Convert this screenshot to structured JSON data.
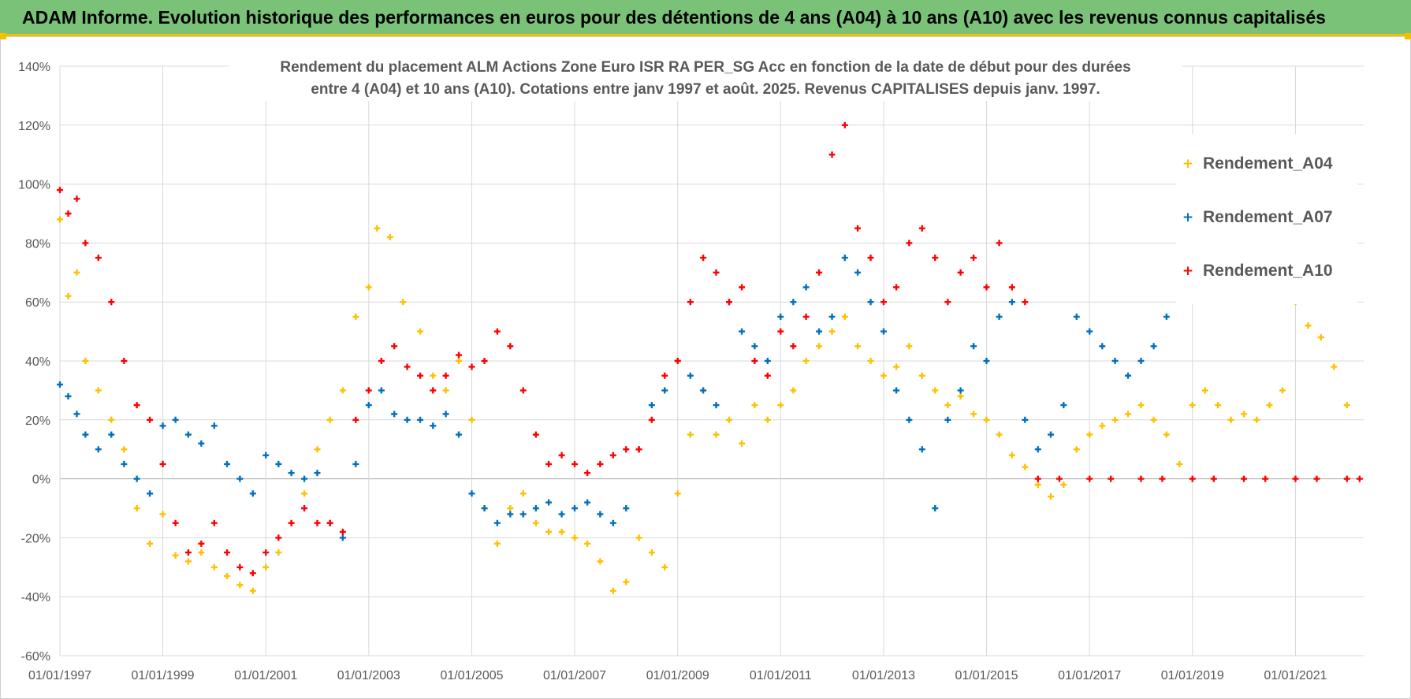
{
  "header": {
    "title": "ADAM Informe. Evolution historique des performances en euros pour des détentions de 4 ans (A04) à 10 ans (A10) avec les revenus connus capitalisés"
  },
  "chart_data": {
    "type": "scatter",
    "title_line1": "Rendement du placement ALM Actions Zone Euro ISR RA PER_SG Acc en fonction de la date de début pour des durées",
    "title_line2": "entre 4 (A04) et 10 ans (A10).  Cotations entre janv 1997 et août. 2025. Revenus CAPITALISES depuis janv. 1997.",
    "xlabel": "",
    "ylabel": "",
    "xlim": [
      "1997-01-01",
      "2022-04-30"
    ],
    "ylim": [
      -60,
      140
    ],
    "x_ticks": [
      "01/01/1997",
      "01/01/1999",
      "01/01/2001",
      "01/01/2003",
      "01/01/2005",
      "01/01/2007",
      "01/01/2009",
      "01/01/2011",
      "01/01/2013",
      "01/01/2015",
      "01/01/2017",
      "01/01/2019",
      "01/01/2021"
    ],
    "y_ticks": [
      "140%",
      "120%",
      "100%",
      "80%",
      "60%",
      "40%",
      "20%",
      "0%",
      "-20%",
      "-40%",
      "-60%"
    ],
    "y_tick_values": [
      140,
      120,
      100,
      80,
      60,
      40,
      20,
      0,
      -20,
      -40,
      -60
    ],
    "grid": "horizontal",
    "legend_position": "right",
    "series": [
      {
        "name": "Rendement_A04",
        "color": "#ffc000",
        "marker": "+",
        "x": [
          "1997-01-01",
          "1997-03-01",
          "1997-05-01",
          "1997-07-01",
          "1997-10-01",
          "1998-01-01",
          "1998-04-01",
          "1998-07-01",
          "1998-10-01",
          "1999-01-01",
          "1999-04-01",
          "1999-07-01",
          "1999-10-01",
          "2000-01-01",
          "2000-04-01",
          "2000-07-01",
          "2000-10-01",
          "2001-01-01",
          "2001-04-01",
          "2001-07-01",
          "2001-10-01",
          "2002-01-01",
          "2002-04-01",
          "2002-07-01",
          "2002-10-01",
          "2003-01-01",
          "2003-03-01",
          "2003-06-01",
          "2003-09-01",
          "2004-01-01",
          "2004-04-01",
          "2004-07-01",
          "2004-10-01",
          "2005-01-01",
          "2005-04-01",
          "2005-07-01",
          "2005-10-01",
          "2006-01-01",
          "2006-04-01",
          "2006-07-01",
          "2006-10-01",
          "2007-01-01",
          "2007-04-01",
          "2007-07-01",
          "2007-10-01",
          "2008-01-01",
          "2008-04-01",
          "2008-07-01",
          "2008-10-01",
          "2009-01-01",
          "2009-04-01",
          "2009-07-01",
          "2009-10-01",
          "2010-01-01",
          "2010-04-01",
          "2010-07-01",
          "2010-10-01",
          "2011-01-01",
          "2011-04-01",
          "2011-07-01",
          "2011-10-01",
          "2012-01-01",
          "2012-04-01",
          "2012-07-01",
          "2012-10-01",
          "2013-01-01",
          "2013-04-01",
          "2013-07-01",
          "2013-10-01",
          "2014-01-01",
          "2014-04-01",
          "2014-07-01",
          "2014-10-01",
          "2015-01-01",
          "2015-04-01",
          "2015-07-01",
          "2015-10-01",
          "2016-01-01",
          "2016-04-01",
          "2016-07-01",
          "2016-10-01",
          "2017-01-01",
          "2017-04-01",
          "2017-07-01",
          "2017-10-01",
          "2018-01-01",
          "2018-04-01",
          "2018-07-01",
          "2018-10-01",
          "2019-01-01",
          "2019-04-01",
          "2019-07-01",
          "2019-10-01",
          "2020-01-01",
          "2020-04-01",
          "2020-07-01",
          "2020-10-01",
          "2021-01-01",
          "2021-04-01",
          "2021-07-01",
          "2021-10-01",
          "2022-01-01"
        ],
        "y": [
          88,
          62,
          70,
          40,
          30,
          20,
          10,
          -10,
          -22,
          -12,
          -26,
          -28,
          -25,
          -30,
          -33,
          -36,
          -38,
          -30,
          -25,
          -15,
          -5,
          10,
          20,
          30,
          55,
          65,
          85,
          82,
          60,
          50,
          35,
          30,
          40,
          20,
          -10,
          -22,
          -10,
          -5,
          -15,
          -18,
          -18,
          -20,
          -22,
          -28,
          -38,
          -35,
          -20,
          -25,
          -30,
          -5,
          15,
          30,
          15,
          20,
          12,
          25,
          20,
          25,
          30,
          40,
          45,
          50,
          55,
          45,
          40,
          35,
          38,
          45,
          35,
          30,
          25,
          28,
          22,
          20,
          15,
          8,
          4,
          -2,
          -6,
          -2,
          10,
          15,
          18,
          20,
          22,
          25,
          20,
          15,
          5,
          25,
          30,
          25,
          20,
          22,
          20,
          25,
          30,
          60,
          52,
          48,
          38,
          25
        ]
      },
      {
        "name": "Rendement_A07",
        "color": "#0070c0",
        "marker": "+",
        "x": [
          "1997-01-01",
          "1997-03-01",
          "1997-05-01",
          "1997-07-01",
          "1997-10-01",
          "1998-01-01",
          "1998-04-01",
          "1998-07-01",
          "1998-10-01",
          "1999-01-01",
          "1999-04-01",
          "1999-07-01",
          "1999-10-01",
          "2000-01-01",
          "2000-04-01",
          "2000-07-01",
          "2000-10-01",
          "2001-01-01",
          "2001-04-01",
          "2001-07-01",
          "2001-10-01",
          "2002-01-01",
          "2002-04-01",
          "2002-07-01",
          "2002-10-01",
          "2003-01-01",
          "2003-04-01",
          "2003-07-01",
          "2003-10-01",
          "2004-01-01",
          "2004-04-01",
          "2004-07-01",
          "2004-10-01",
          "2005-01-01",
          "2005-04-01",
          "2005-07-01",
          "2005-10-01",
          "2006-01-01",
          "2006-04-01",
          "2006-07-01",
          "2006-10-01",
          "2007-01-01",
          "2007-04-01",
          "2007-07-01",
          "2007-10-01",
          "2008-01-01",
          "2008-04-01",
          "2008-07-01",
          "2008-10-01",
          "2009-01-01",
          "2009-04-01",
          "2009-07-01",
          "2009-10-01",
          "2010-01-01",
          "2010-04-01",
          "2010-07-01",
          "2010-10-01",
          "2011-01-01",
          "2011-04-01",
          "2011-07-01",
          "2011-10-01",
          "2012-01-01",
          "2012-04-01",
          "2012-07-01",
          "2012-10-01",
          "2013-01-01",
          "2013-04-01",
          "2013-07-01",
          "2013-10-01",
          "2014-01-01",
          "2014-04-01",
          "2014-07-01",
          "2014-10-01",
          "2015-01-01",
          "2015-04-01",
          "2015-07-01",
          "2015-10-01",
          "2016-01-01",
          "2016-04-01",
          "2016-07-01",
          "2016-10-01",
          "2017-01-01",
          "2017-04-01",
          "2017-07-01",
          "2017-10-01",
          "2018-01-01",
          "2018-04-01",
          "2018-07-01"
        ],
        "y": [
          32,
          28,
          22,
          15,
          10,
          15,
          5,
          0,
          -5,
          18,
          20,
          15,
          12,
          18,
          5,
          0,
          -5,
          8,
          5,
          2,
          0,
          2,
          -15,
          -20,
          5,
          25,
          30,
          22,
          20,
          20,
          18,
          22,
          15,
          -5,
          -10,
          -15,
          -12,
          -12,
          -10,
          -8,
          -12,
          -10,
          -8,
          -12,
          -15,
          -10,
          10,
          25,
          30,
          40,
          35,
          30,
          25,
          60,
          50,
          45,
          40,
          55,
          60,
          65,
          50,
          55,
          75,
          70,
          60,
          50,
          30,
          20,
          10,
          -10,
          20,
          30,
          45,
          40,
          55,
          60,
          20,
          10,
          15,
          25,
          55,
          50,
          45,
          40,
          35,
          40,
          45,
          55
        ]
      },
      {
        "name": "Rendement_A10",
        "color": "#ff0000",
        "marker": "+",
        "x": [
          "1997-01-01",
          "1997-03-01",
          "1997-05-01",
          "1997-07-01",
          "1997-10-01",
          "1998-01-01",
          "1998-04-01",
          "1998-07-01",
          "1998-10-01",
          "1999-01-01",
          "1999-04-01",
          "1999-07-01",
          "1999-10-01",
          "2000-01-01",
          "2000-04-01",
          "2000-07-01",
          "2000-10-01",
          "2001-01-01",
          "2001-04-01",
          "2001-07-01",
          "2001-10-01",
          "2002-01-01",
          "2002-04-01",
          "2002-07-01",
          "2002-10-01",
          "2003-01-01",
          "2003-04-01",
          "2003-07-01",
          "2003-10-01",
          "2004-01-01",
          "2004-04-01",
          "2004-07-01",
          "2004-10-01",
          "2005-01-01",
          "2005-04-01",
          "2005-07-01",
          "2005-10-01",
          "2006-01-01",
          "2006-04-01",
          "2006-07-01",
          "2006-10-01",
          "2007-01-01",
          "2007-04-01",
          "2007-07-01",
          "2007-10-01",
          "2008-01-01",
          "2008-04-01",
          "2008-07-01",
          "2008-10-01",
          "2009-01-01",
          "2009-04-01",
          "2009-07-01",
          "2009-10-01",
          "2010-01-01",
          "2010-04-01",
          "2010-07-01",
          "2010-10-01",
          "2011-01-01",
          "2011-04-01",
          "2011-07-01",
          "2011-10-01",
          "2012-01-01",
          "2012-04-01",
          "2012-07-01",
          "2012-10-01",
          "2013-01-01",
          "2013-04-01",
          "2013-07-01",
          "2013-10-01",
          "2014-01-01",
          "2014-04-01",
          "2014-07-01",
          "2014-10-01",
          "2015-01-01",
          "2015-04-01",
          "2015-07-01",
          "2015-10-01",
          "2016-01-01",
          "2016-06-01",
          "2017-01-01",
          "2017-06-01",
          "2018-01-01",
          "2018-06-01",
          "2019-01-01",
          "2019-06-01",
          "2020-01-01",
          "2020-06-01",
          "2021-01-01",
          "2021-06-01",
          "2022-01-01",
          "2022-04-01"
        ],
        "y": [
          98,
          90,
          95,
          80,
          75,
          60,
          40,
          25,
          20,
          5,
          -15,
          -25,
          -22,
          -15,
          -25,
          -30,
          -32,
          -25,
          -20,
          -15,
          -10,
          -15,
          -15,
          -18,
          20,
          30,
          40,
          45,
          38,
          35,
          30,
          35,
          42,
          38,
          40,
          50,
          45,
          30,
          15,
          5,
          8,
          5,
          2,
          5,
          8,
          10,
          10,
          20,
          35,
          40,
          60,
          75,
          70,
          60,
          65,
          40,
          35,
          50,
          45,
          55,
          70,
          110,
          120,
          85,
          75,
          60,
          65,
          80,
          85,
          75,
          60,
          70,
          75,
          65,
          80,
          65,
          60,
          0,
          0,
          0,
          0,
          0,
          0,
          0,
          0,
          0,
          0,
          0,
          0,
          0,
          0
        ]
      }
    ]
  }
}
